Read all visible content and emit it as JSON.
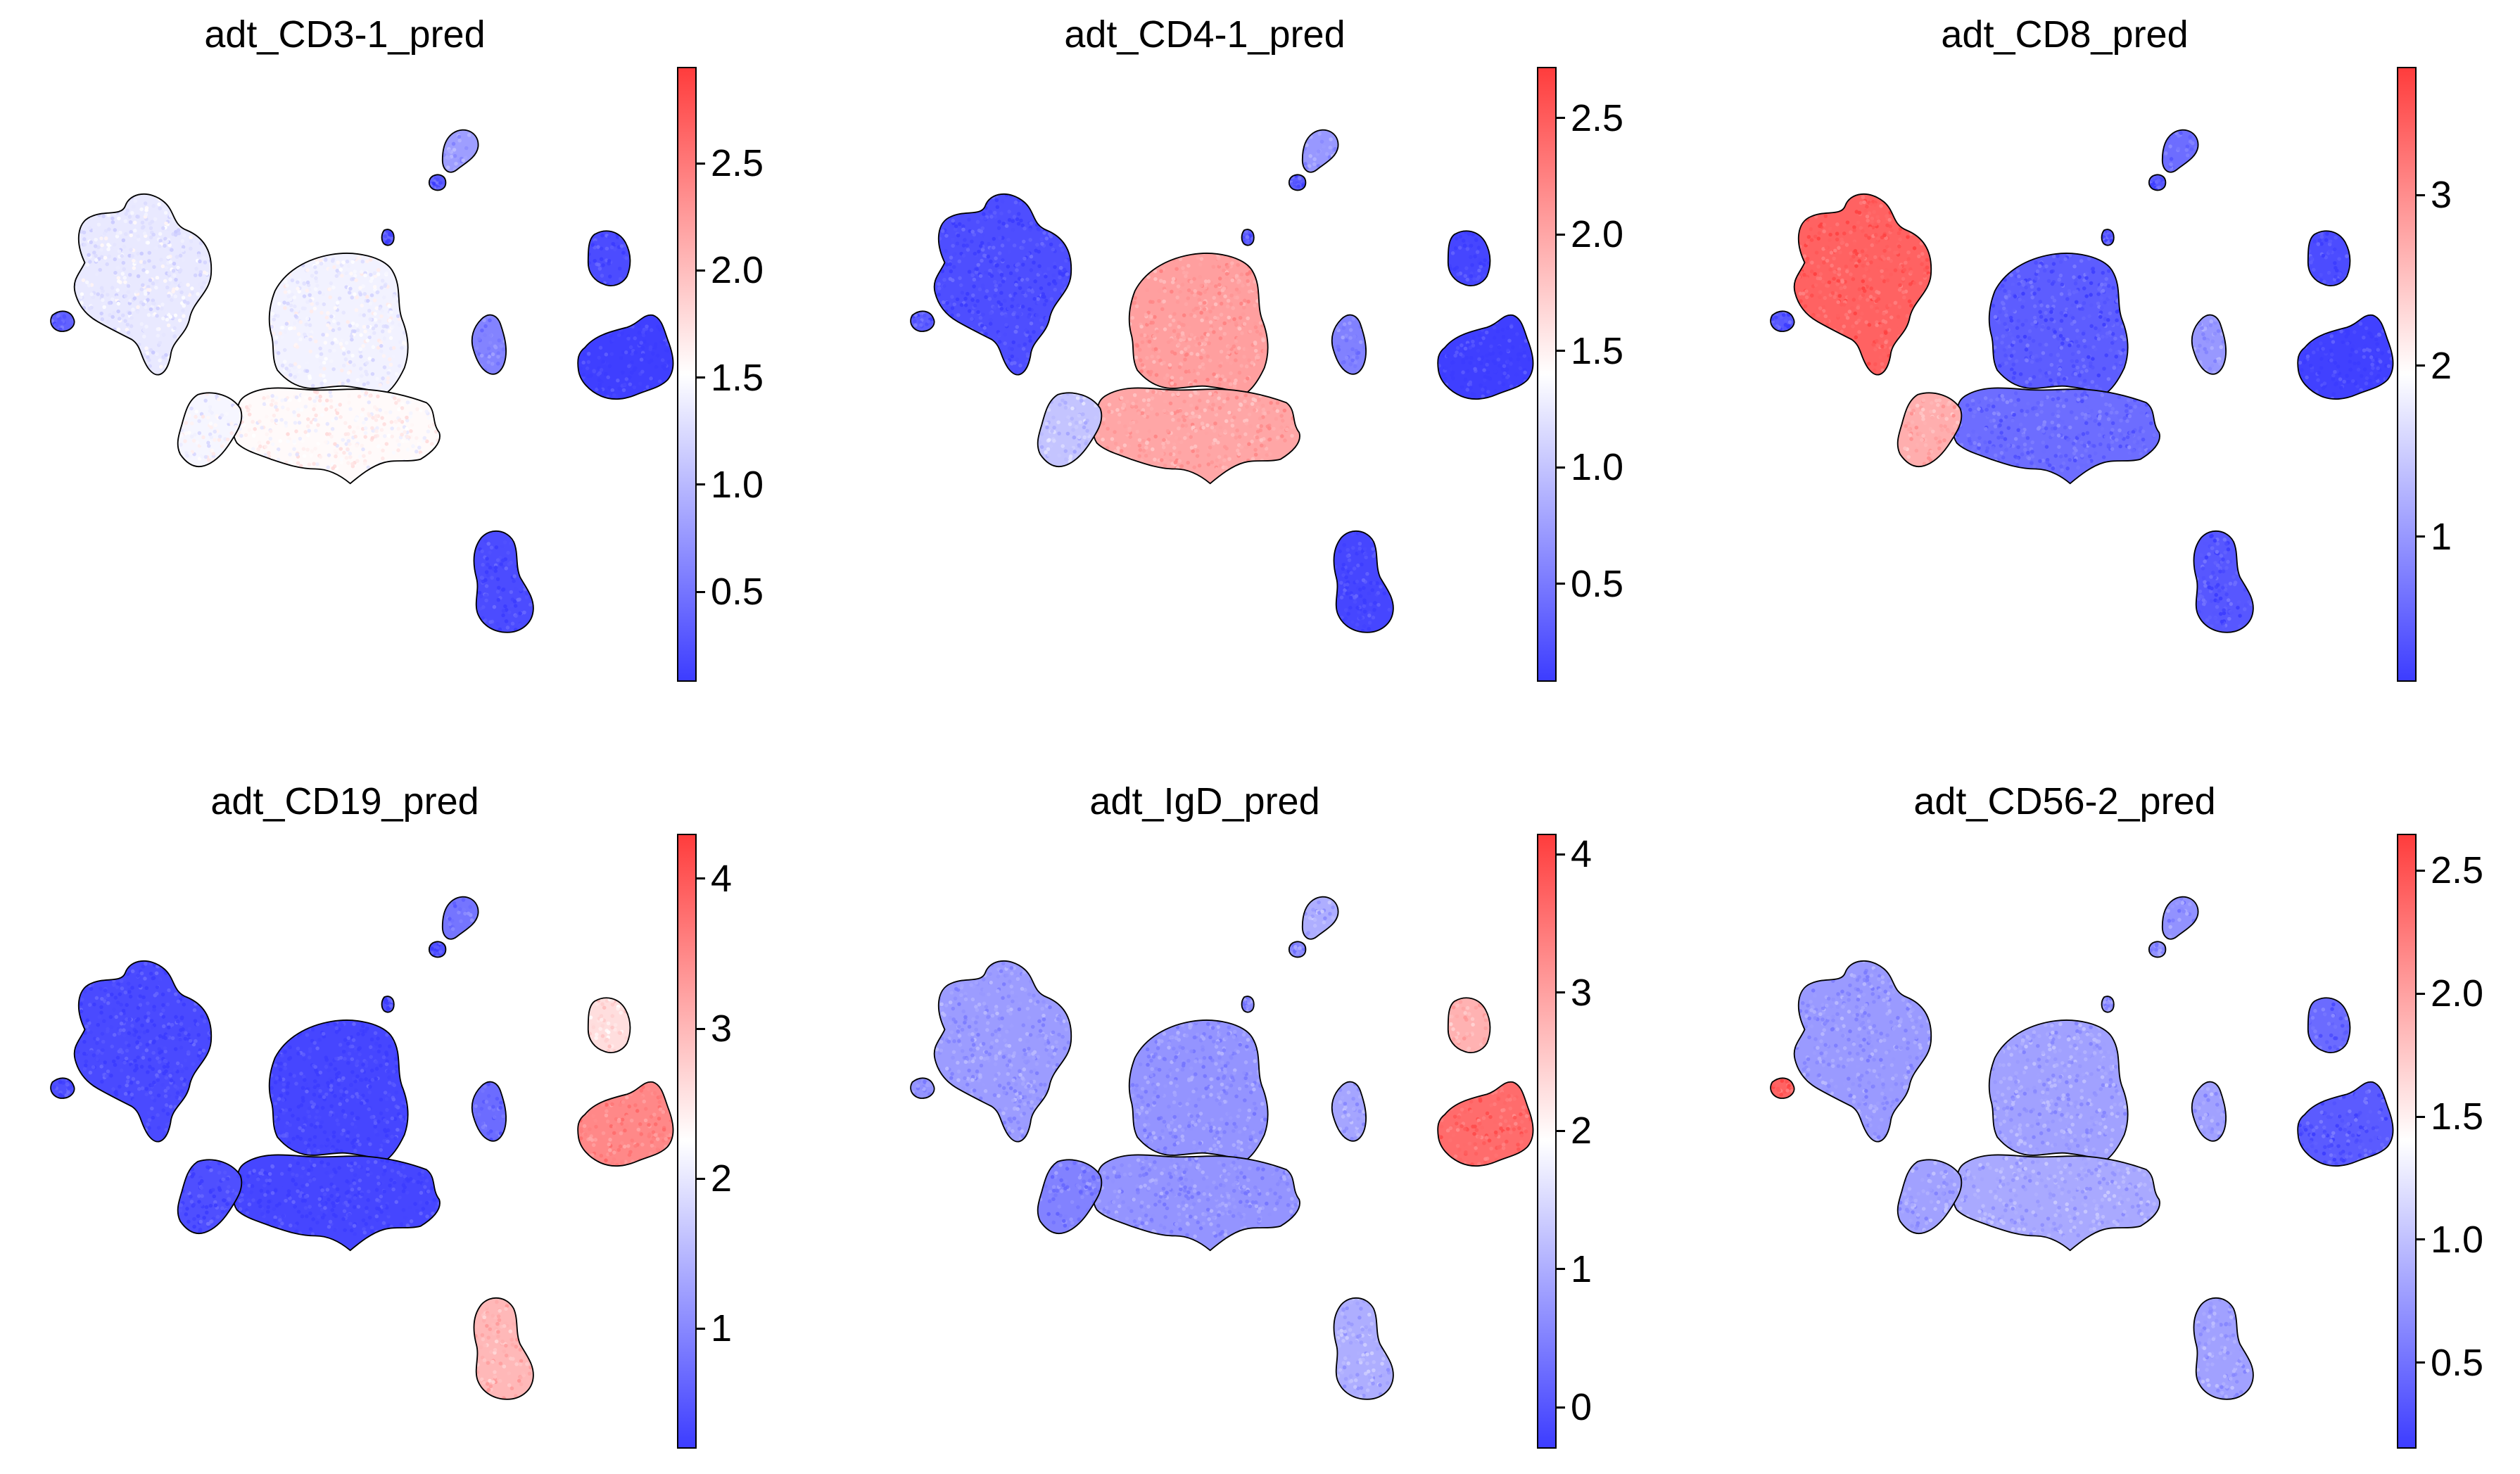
{
  "figure": {
    "cmap": [
      "#3c3cff",
      "#ffffff",
      "#ff3c3c"
    ],
    "outline_color": "#000000",
    "background": "#ffffff"
  },
  "chart_data": [
    {
      "type": "scatter",
      "title": "adt_CD3-1_pred",
      "colorbar": {
        "min": 0.08,
        "max": 2.95,
        "ticks": [
          0.5,
          1.0,
          1.5,
          2.0,
          2.5
        ],
        "tick_labels": [
          "0.5",
          "1.0",
          "1.5",
          "2.0",
          "2.5"
        ]
      },
      "cluster_values": {
        "A": 1.35,
        "B": 1.42,
        "B2": 1.55,
        "C": 1.45,
        "D": 0.2,
        "E": 0.1,
        "F": 0.2,
        "G": 0.6,
        "H": 0.8,
        "I": 0.35,
        "J": 0.3,
        "K": 0.3
      }
    },
    {
      "type": "scatter",
      "title": "adt_CD4-1_pred",
      "colorbar": {
        "min": 0.08,
        "max": 2.72,
        "ticks": [
          0.5,
          1.0,
          1.5,
          2.0,
          2.5
        ],
        "tick_labels": [
          "0.5",
          "1.0",
          "1.5",
          "2.0",
          "2.5"
        ]
      },
      "cluster_values": {
        "A": 0.2,
        "B": 2.05,
        "B2": 2.0,
        "C": 1.0,
        "D": 0.15,
        "E": 0.1,
        "F": 0.15,
        "G": 0.55,
        "H": 0.7,
        "I": 0.3,
        "J": 0.3,
        "K": 0.3
      }
    },
    {
      "type": "scatter",
      "title": "adt_CD8_pred",
      "colorbar": {
        "min": 0.15,
        "max": 3.75,
        "ticks": [
          1,
          2,
          3
        ],
        "tick_labels": [
          "1",
          "2",
          "3"
        ]
      },
      "cluster_values": {
        "A": 3.4,
        "B": 0.45,
        "B2": 0.6,
        "C": 2.7,
        "D": 0.3,
        "E": 0.2,
        "F": 0.4,
        "G": 1.0,
        "H": 0.6,
        "I": 0.4,
        "J": 0.4,
        "K": 0.4
      }
    },
    {
      "type": "scatter",
      "title": "adt_CD19_pred",
      "colorbar": {
        "min": 0.2,
        "max": 4.3,
        "ticks": [
          1,
          2,
          3,
          4
        ],
        "tick_labels": [
          "1",
          "2",
          "3",
          "4"
        ]
      },
      "cluster_values": {
        "A": 0.35,
        "B": 0.3,
        "B2": 0.3,
        "C": 0.4,
        "D": 2.6,
        "E": 3.5,
        "F": 3.0,
        "G": 0.7,
        "H": 0.8,
        "I": 0.4,
        "J": 0.4,
        "K": 0.4
      }
    },
    {
      "type": "scatter",
      "title": "adt_IgD_pred",
      "colorbar": {
        "min": -0.3,
        "max": 4.15,
        "ticks": [
          0,
          1,
          2,
          3,
          4
        ],
        "tick_labels": [
          "0",
          "1",
          "2",
          "3",
          "4"
        ]
      },
      "cluster_values": {
        "A": 0.8,
        "B": 0.7,
        "B2": 0.7,
        "C": 0.5,
        "D": 2.8,
        "E": 3.6,
        "F": 1.0,
        "G": 0.9,
        "H": 1.0,
        "I": 0.7,
        "J": 0.6,
        "K": 0.6
      }
    },
    {
      "type": "scatter",
      "title": "adt_CD56-2_pred",
      "colorbar": {
        "min": 0.15,
        "max": 2.65,
        "ticks": [
          0.5,
          1.0,
          1.5,
          2.0,
          2.5
        ],
        "tick_labels": [
          "0.5",
          "1.0",
          "1.5",
          "2.0",
          "2.5"
        ]
      },
      "cluster_values": {
        "A": 0.75,
        "B": 0.8,
        "B2": 0.85,
        "C": 0.8,
        "D": 0.45,
        "E": 0.35,
        "F": 0.8,
        "G": 0.8,
        "H": 0.7,
        "I": 2.4,
        "J": 0.7,
        "K": 0.7
      }
    }
  ]
}
